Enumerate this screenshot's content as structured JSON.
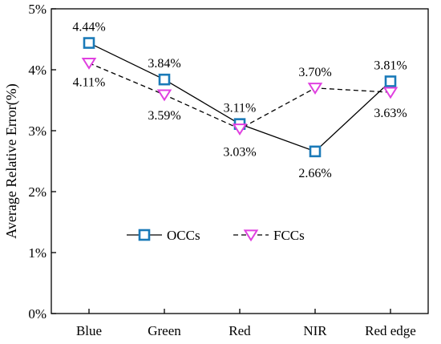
{
  "chart_data": {
    "type": "line",
    "categories": [
      "Blue",
      "Green",
      "Red",
      "NIR",
      "Red edge"
    ],
    "ylabel": "Average Relative Error(%)",
    "xlabel": "",
    "ylim": [
      0,
      5
    ],
    "yticks": [
      "0%",
      "1%",
      "2%",
      "3%",
      "4%",
      "5%"
    ],
    "grid": false,
    "legend_position": "center-left",
    "series": [
      {
        "name": "OCCs",
        "values": [
          4.44,
          3.84,
          3.11,
          2.66,
          3.81
        ],
        "labels": [
          "4.44%",
          "3.84%",
          "3.11%",
          "2.66%",
          "3.81%"
        ],
        "color": "#1a7ab8",
        "line_style": "solid",
        "marker": "square"
      },
      {
        "name": "FCCs",
        "values": [
          4.11,
          3.59,
          3.03,
          3.7,
          3.63
        ],
        "labels": [
          "4.11%",
          "3.59%",
          "3.03%",
          "3.70%",
          "3.63%"
        ],
        "color": "#e040e0",
        "line_style": "dashed",
        "marker": "triangle-down"
      }
    ]
  }
}
